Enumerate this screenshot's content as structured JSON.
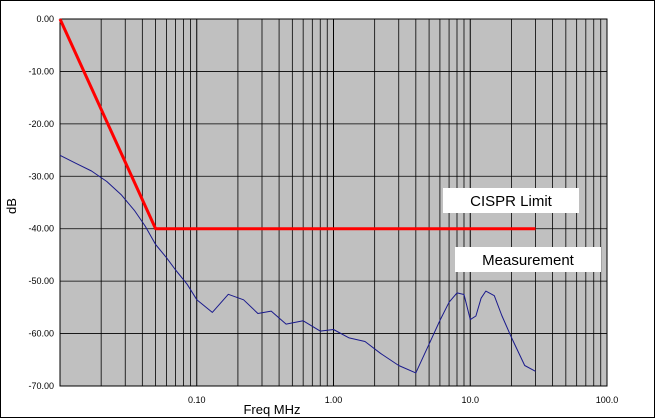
{
  "chart_data": {
    "type": "line",
    "title": "",
    "xlabel": "Freq MHz",
    "ylabel": "dB",
    "xscale": "log",
    "xlim": [
      0.01,
      100
    ],
    "ylim": [
      -70,
      0
    ],
    "grid": true,
    "x_ticks": [
      {
        "value": 0.1,
        "label": "0.10"
      },
      {
        "value": 1,
        "label": "1.00"
      },
      {
        "value": 10,
        "label": "10.0"
      },
      {
        "value": 100,
        "label": "100.0"
      }
    ],
    "y_ticks": [
      {
        "value": 0,
        "label": "0.00"
      },
      {
        "value": -10,
        "label": "-10.00"
      },
      {
        "value": -20,
        "label": "-20.00"
      },
      {
        "value": -30,
        "label": "-30.00"
      },
      {
        "value": -40,
        "label": "-40.00"
      },
      {
        "value": -50,
        "label": "-50.00"
      },
      {
        "value": -60,
        "label": "-60.00"
      },
      {
        "value": -70,
        "label": "-70.00"
      }
    ],
    "series": [
      {
        "name": "CISPR Limit",
        "color": "#ff0000",
        "x": [
          0.01,
          0.05,
          30
        ],
        "y": [
          0,
          -40,
          -40
        ]
      },
      {
        "name": "Measurement",
        "color": "#1a1a8c",
        "x": [
          0.01,
          0.013,
          0.017,
          0.022,
          0.028,
          0.035,
          0.042,
          0.05,
          0.06,
          0.07,
          0.085,
          0.1,
          0.13,
          0.17,
          0.22,
          0.28,
          0.35,
          0.45,
          0.6,
          0.8,
          1.0,
          1.3,
          1.7,
          2.2,
          3.0,
          4.0,
          5.0,
          6.0,
          7.0,
          8.0,
          9.0,
          10.0,
          11.0,
          12.0,
          13.0,
          15.0,
          17.0,
          20.0,
          25.0,
          30.0
        ],
        "y": [
          -26,
          -27.5,
          -29,
          -31,
          -33.5,
          -36.5,
          -39.5,
          -42,
          -45,
          -48,
          -52,
          -54.5,
          -55,
          -54,
          -54.5,
          -56,
          -57,
          -58,
          -58,
          -59,
          -60,
          -61,
          -62,
          -63.5,
          -65,
          -67,
          -62,
          -56,
          -53,
          -52,
          -54,
          -58,
          -56,
          -53,
          -51,
          -53,
          -58,
          -62,
          -66,
          -68
        ]
      }
    ],
    "annotations": [
      {
        "text": "CISPR Limit"
      },
      {
        "text": "Measurement"
      }
    ]
  }
}
